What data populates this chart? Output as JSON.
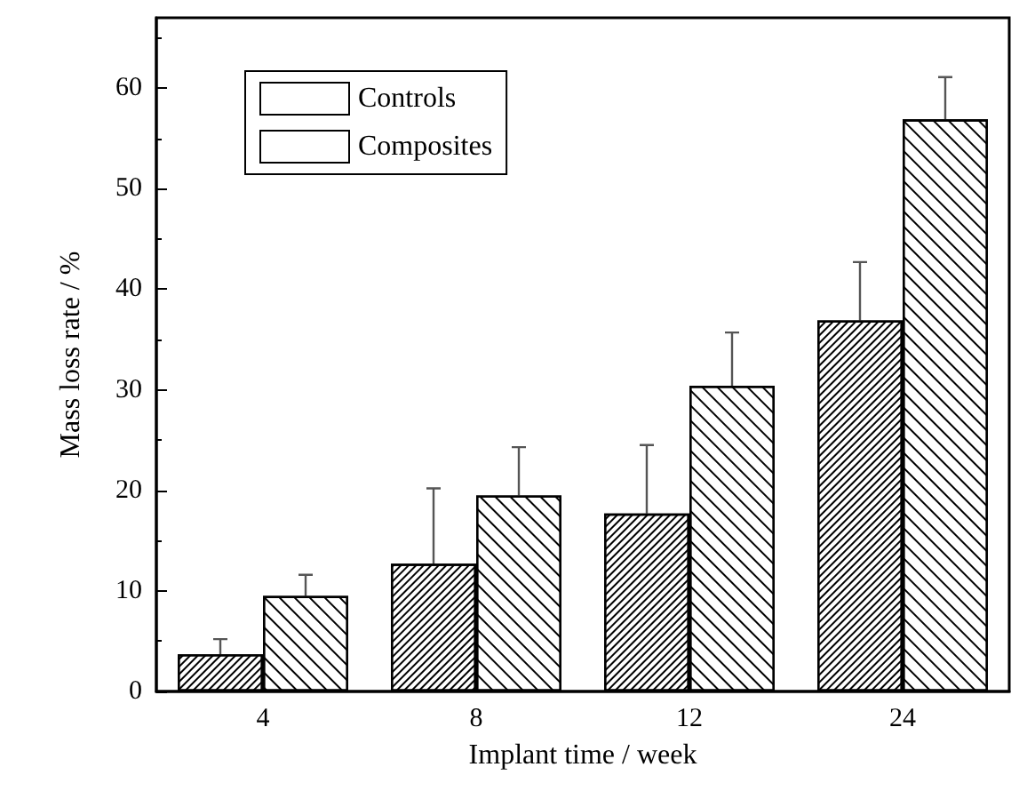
{
  "chart_data": {
    "type": "bar",
    "xlabel": "Implant time / week",
    "ylabel": "Mass loss rate / %",
    "categories": [
      "4",
      "8",
      "12",
      "24"
    ],
    "series": [
      {
        "name": "Controls",
        "color": "#ffffff",
        "values": [
          3.7,
          12.7,
          17.7,
          36.9
        ],
        "errors": [
          [
            3.7,
            5.2
          ],
          [
            12.7,
            20.2
          ],
          [
            17.7,
            24.5
          ],
          [
            36.9,
            42.7
          ]
        ]
      },
      {
        "name": "Composites",
        "color": "#ffffff",
        "values": [
          9.5,
          19.5,
          30.4,
          56.9
        ],
        "errors": [
          [
            9.5,
            11.6
          ],
          [
            19.5,
            24.3
          ],
          [
            30.4,
            35.7
          ],
          [
            56.9,
            61.1
          ]
        ]
      }
    ],
    "ylim": [
      0,
      67
    ],
    "yticks": [
      0,
      10,
      20,
      30,
      40,
      50,
      60
    ],
    "grid": false,
    "legend": "top left"
  }
}
